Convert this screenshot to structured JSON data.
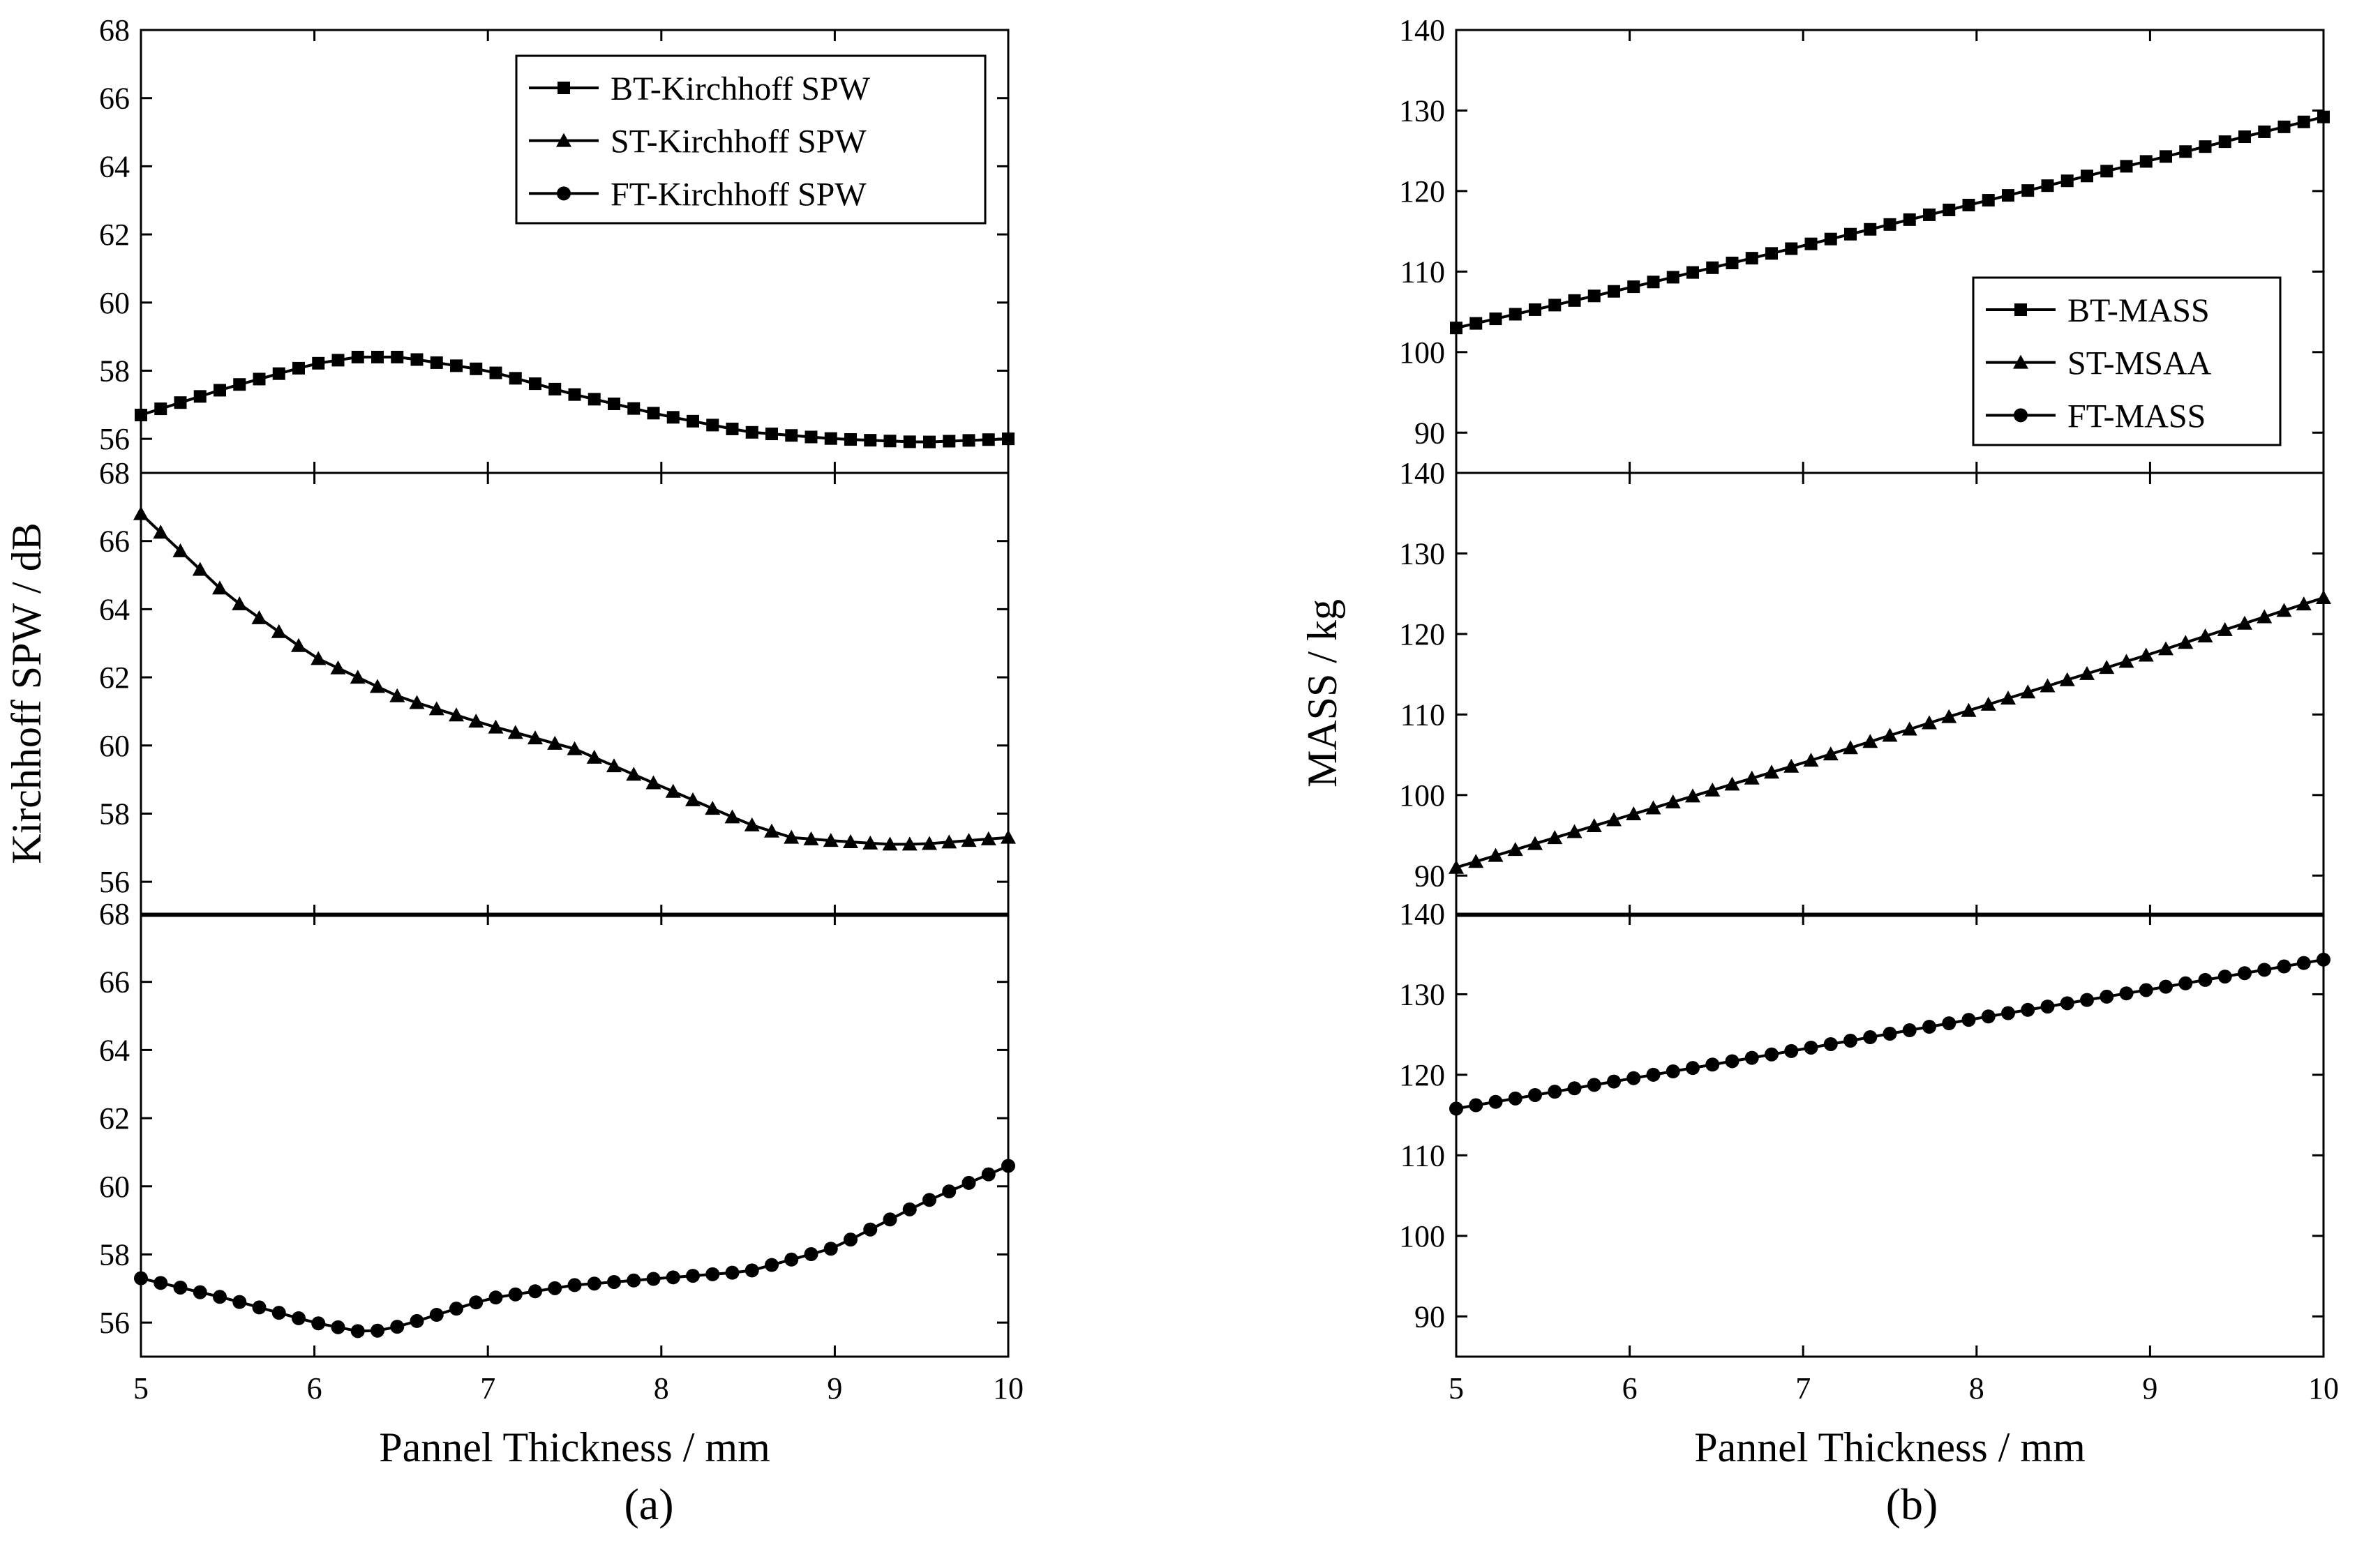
{
  "figure": {
    "panel_a_label": "(a)",
    "panel_b_label": "(b)"
  },
  "chart_data": [
    {
      "type": "line",
      "id": "a",
      "stacked_panels": 3,
      "xlabel": "Pannel Thickness / mm",
      "ylabel": "Kirchhoff SPW / dB",
      "xlim": [
        5,
        10
      ],
      "xticks": [
        5,
        6,
        7,
        8,
        9,
        10
      ],
      "legend": {
        "placement": "top-right of top panel",
        "entries": [
          "BT-Kirchhoff SPW",
          "ST-Kirchhoff SPW",
          "FT-Kirchhoff SPW"
        ]
      },
      "panels": [
        {
          "ylim": [
            55,
            68
          ],
          "yticks": [
            56,
            58,
            60,
            62,
            64,
            66,
            68
          ],
          "series": {
            "name": "BT-Kirchhoff SPW",
            "marker": "square",
            "x": [
              5.0,
              5.5,
              6.0,
              6.25,
              6.5,
              7.0,
              7.5,
              8.0,
              8.5,
              9.0,
              9.5,
              10.0
            ],
            "y": [
              56.7,
              57.5,
              58.2,
              58.4,
              58.4,
              58.0,
              57.3,
              56.7,
              56.2,
              56.0,
              55.9,
              56.0
            ]
          }
        },
        {
          "ylim": [
            55,
            68
          ],
          "yticks": [
            56,
            58,
            60,
            62,
            64,
            66,
            68
          ],
          "series": {
            "name": "ST-Kirchhoff SPW",
            "marker": "triangle",
            "x": [
              5.0,
              5.5,
              6.0,
              6.5,
              7.0,
              7.5,
              8.0,
              8.5,
              8.75,
              9.0,
              9.3,
              9.5,
              10.0
            ],
            "y": [
              66.8,
              64.4,
              62.6,
              61.4,
              60.6,
              59.9,
              58.8,
              57.7,
              57.3,
              57.2,
              57.1,
              57.1,
              57.3
            ]
          }
        },
        {
          "ylim": [
            55,
            68
          ],
          "yticks": [
            56,
            58,
            60,
            62,
            64,
            66,
            68
          ],
          "series": {
            "name": "FT-Kirchhoff SPW",
            "marker": "circle",
            "x": [
              5.0,
              5.5,
              6.0,
              6.3,
              6.5,
              7.0,
              7.5,
              8.0,
              8.5,
              9.0,
              9.5,
              10.0
            ],
            "y": [
              57.3,
              56.7,
              56.0,
              55.7,
              55.9,
              56.7,
              57.1,
              57.3,
              57.5,
              58.2,
              59.5,
              60.6
            ]
          }
        }
      ]
    },
    {
      "type": "line",
      "id": "b",
      "stacked_panels": 3,
      "xlabel": "Pannel Thickness / mm",
      "ylabel": "MASS / kg",
      "xlim": [
        5,
        10
      ],
      "xticks": [
        5,
        6,
        7,
        8,
        9,
        10
      ],
      "legend": {
        "placement": "middle-right of top panel",
        "entries": [
          "BT-MASS",
          "ST-MSAA",
          "FT-MASS"
        ]
      },
      "panels": [
        {
          "ylim": [
            85,
            140
          ],
          "yticks": [
            90,
            100,
            110,
            120,
            130,
            140
          ],
          "series": {
            "name": "BT-MASS",
            "marker": "square",
            "x": [
              5.0,
              6.0,
              7.0,
              8.0,
              9.0,
              10.0
            ],
            "y": [
              103.0,
              108.0,
              113.2,
              118.5,
              123.8,
              129.2
            ]
          }
        },
        {
          "ylim": [
            85,
            140
          ],
          "yticks": [
            90,
            100,
            110,
            120,
            130,
            140
          ],
          "series": {
            "name": "ST-MSAA",
            "marker": "triangle",
            "x": [
              5.0,
              6.0,
              7.0,
              8.0,
              9.0,
              10.0
            ],
            "y": [
              91.0,
              97.5,
              104.0,
              110.8,
              117.5,
              124.5
            ]
          }
        },
        {
          "ylim": [
            85,
            140
          ],
          "yticks": [
            90,
            100,
            110,
            120,
            130,
            140
          ],
          "series": {
            "name": "FT-MASS",
            "marker": "circle",
            "x": [
              5.0,
              6.0,
              7.0,
              8.0,
              9.0,
              10.0
            ],
            "y": [
              115.8,
              119.5,
              123.2,
              127.0,
              130.6,
              134.3
            ]
          }
        }
      ]
    }
  ]
}
